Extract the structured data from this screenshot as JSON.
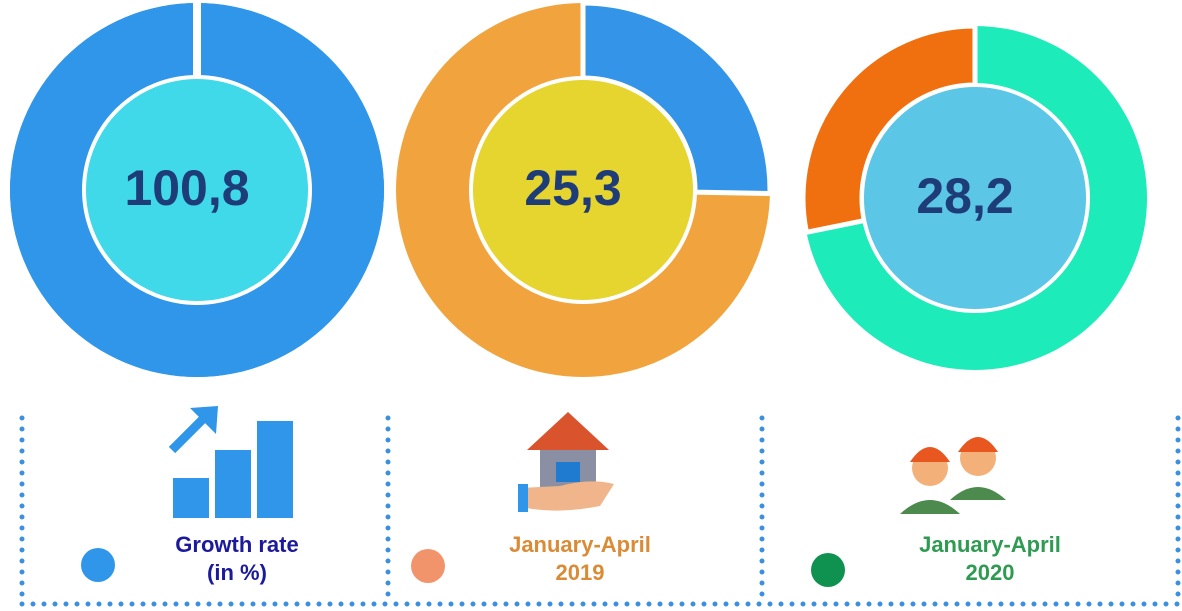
{
  "chart_data": [
    {
      "type": "donut",
      "values": [
        100.8
      ],
      "value_labels": [
        "100,8"
      ],
      "ring_color": "#2f96ea",
      "segment_color": "#2f96ea",
      "center_color": "#3fd9e9"
    },
    {
      "type": "donut",
      "values": [
        25.3
      ],
      "value_labels": [
        "25,3"
      ],
      "ring_color": "#f1a43d",
      "segment_color": "#3394e8",
      "center_color": "#e6d52f"
    },
    {
      "type": "donut",
      "values": [
        28.2
      ],
      "value_labels": [
        "28,2"
      ],
      "ring_color": "#1debb9",
      "segment_color": "#f0700f",
      "center_color": "#5bc6e6"
    }
  ],
  "legend": [
    {
      "label": "Growth rate\n(in %)",
      "color": "#2f96ea",
      "text_color": "#1b1a9c"
    },
    {
      "label": "January-April\n2019",
      "color": "#f2946b",
      "text_color": "#d98b35"
    },
    {
      "label": "January-April\n2020",
      "color": "#0f9150",
      "text_color": "#2f9b52"
    }
  ]
}
